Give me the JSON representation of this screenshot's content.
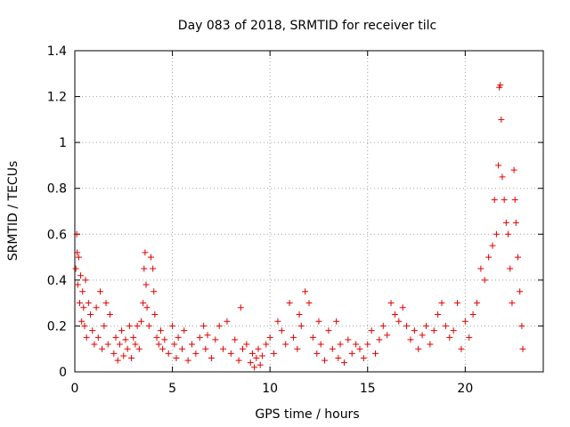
{
  "chart_data": {
    "type": "scatter",
    "title": "Day 083 of 2018, SRMTID for receiver tilc",
    "xlabel": "GPS time / hours",
    "ylabel": "SRMTID / TECUs",
    "xlim": [
      0,
      24
    ],
    "ylim": [
      0,
      1.4
    ],
    "x_ticks": [
      0,
      5,
      10,
      15,
      20
    ],
    "x_tick_labels": [
      "0",
      "5",
      "10",
      "15",
      "20"
    ],
    "y_ticks": [
      0,
      0.2,
      0.4,
      0.6,
      0.8,
      1.0,
      1.2,
      1.4
    ],
    "y_tick_labels": [
      "0",
      "0.2",
      "0.4",
      "0.6",
      "0.8",
      "1",
      "1.2",
      "1.4"
    ],
    "grid": true,
    "marker": "+",
    "series": [
      {
        "name": "SRMTID tilc",
        "color": "#e00000",
        "points": [
          [
            0.05,
            0.45
          ],
          [
            0.1,
            0.6
          ],
          [
            0.12,
            0.52
          ],
          [
            0.15,
            0.38
          ],
          [
            0.2,
            0.5
          ],
          [
            0.25,
            0.3
          ],
          [
            0.3,
            0.42
          ],
          [
            0.35,
            0.22
          ],
          [
            0.4,
            0.35
          ],
          [
            0.45,
            0.28
          ],
          [
            0.5,
            0.2
          ],
          [
            0.55,
            0.4
          ],
          [
            0.6,
            0.15
          ],
          [
            0.7,
            0.3
          ],
          [
            0.8,
            0.25
          ],
          [
            0.9,
            0.18
          ],
          [
            1.0,
            0.12
          ],
          [
            1.1,
            0.28
          ],
          [
            1.2,
            0.15
          ],
          [
            1.3,
            0.35
          ],
          [
            1.4,
            0.1
          ],
          [
            1.5,
            0.2
          ],
          [
            1.6,
            0.3
          ],
          [
            1.7,
            0.12
          ],
          [
            1.8,
            0.25
          ],
          [
            2.0,
            0.08
          ],
          [
            2.1,
            0.15
          ],
          [
            2.2,
            0.05
          ],
          [
            2.3,
            0.12
          ],
          [
            2.4,
            0.18
          ],
          [
            2.5,
            0.07
          ],
          [
            2.6,
            0.14
          ],
          [
            2.7,
            0.1
          ],
          [
            2.8,
            0.2
          ],
          [
            2.9,
            0.06
          ],
          [
            3.0,
            0.15
          ],
          [
            3.1,
            0.12
          ],
          [
            3.2,
            0.2
          ],
          [
            3.3,
            0.1
          ],
          [
            3.4,
            0.22
          ],
          [
            3.5,
            0.3
          ],
          [
            3.55,
            0.45
          ],
          [
            3.6,
            0.52
          ],
          [
            3.65,
            0.38
          ],
          [
            3.7,
            0.28
          ],
          [
            3.8,
            0.2
          ],
          [
            3.9,
            0.5
          ],
          [
            4.0,
            0.45
          ],
          [
            4.05,
            0.35
          ],
          [
            4.1,
            0.25
          ],
          [
            4.2,
            0.15
          ],
          [
            4.3,
            0.12
          ],
          [
            4.4,
            0.18
          ],
          [
            4.5,
            0.1
          ],
          [
            4.6,
            0.14
          ],
          [
            4.8,
            0.08
          ],
          [
            5.0,
            0.2
          ],
          [
            5.1,
            0.12
          ],
          [
            5.2,
            0.06
          ],
          [
            5.3,
            0.15
          ],
          [
            5.5,
            0.1
          ],
          [
            5.6,
            0.18
          ],
          [
            5.8,
            0.05
          ],
          [
            6.0,
            0.12
          ],
          [
            6.2,
            0.08
          ],
          [
            6.4,
            0.15
          ],
          [
            6.6,
            0.2
          ],
          [
            6.7,
            0.1
          ],
          [
            6.8,
            0.16
          ],
          [
            7.0,
            0.06
          ],
          [
            7.2,
            0.14
          ],
          [
            7.4,
            0.2
          ],
          [
            7.6,
            0.1
          ],
          [
            7.8,
            0.22
          ],
          [
            8.0,
            0.08
          ],
          [
            8.2,
            0.14
          ],
          [
            8.4,
            0.05
          ],
          [
            8.5,
            0.28
          ],
          [
            8.6,
            0.1
          ],
          [
            8.8,
            0.12
          ],
          [
            9.0,
            0.04
          ],
          [
            9.1,
            0.08
          ],
          [
            9.2,
            0.02
          ],
          [
            9.3,
            0.06
          ],
          [
            9.4,
            0.1
          ],
          [
            9.5,
            0.03
          ],
          [
            9.6,
            0.07
          ],
          [
            9.8,
            0.12
          ],
          [
            10.0,
            0.15
          ],
          [
            10.2,
            0.08
          ],
          [
            10.4,
            0.22
          ],
          [
            10.6,
            0.18
          ],
          [
            10.8,
            0.12
          ],
          [
            11.0,
            0.3
          ],
          [
            11.2,
            0.15
          ],
          [
            11.4,
            0.1
          ],
          [
            11.5,
            0.25
          ],
          [
            11.6,
            0.2
          ],
          [
            11.8,
            0.35
          ],
          [
            12.0,
            0.3
          ],
          [
            12.2,
            0.15
          ],
          [
            12.4,
            0.08
          ],
          [
            12.5,
            0.22
          ],
          [
            12.6,
            0.12
          ],
          [
            12.8,
            0.05
          ],
          [
            13.0,
            0.18
          ],
          [
            13.2,
            0.1
          ],
          [
            13.4,
            0.22
          ],
          [
            13.5,
            0.06
          ],
          [
            13.6,
            0.12
          ],
          [
            13.8,
            0.04
          ],
          [
            14.0,
            0.14
          ],
          [
            14.2,
            0.08
          ],
          [
            14.4,
            0.12
          ],
          [
            14.6,
            0.1
          ],
          [
            14.8,
            0.06
          ],
          [
            15.0,
            0.12
          ],
          [
            15.2,
            0.18
          ],
          [
            15.4,
            0.08
          ],
          [
            15.6,
            0.14
          ],
          [
            15.8,
            0.2
          ],
          [
            16.0,
            0.16
          ],
          [
            16.2,
            0.3
          ],
          [
            16.4,
            0.25
          ],
          [
            16.6,
            0.22
          ],
          [
            16.8,
            0.28
          ],
          [
            17.0,
            0.2
          ],
          [
            17.2,
            0.14
          ],
          [
            17.4,
            0.18
          ],
          [
            17.6,
            0.1
          ],
          [
            17.8,
            0.16
          ],
          [
            18.0,
            0.2
          ],
          [
            18.2,
            0.12
          ],
          [
            18.4,
            0.18
          ],
          [
            18.6,
            0.25
          ],
          [
            18.8,
            0.3
          ],
          [
            19.0,
            0.2
          ],
          [
            19.2,
            0.15
          ],
          [
            19.4,
            0.18
          ],
          [
            19.6,
            0.3
          ],
          [
            19.8,
            0.1
          ],
          [
            20.0,
            0.22
          ],
          [
            20.2,
            0.15
          ],
          [
            20.4,
            0.25
          ],
          [
            20.6,
            0.3
          ],
          [
            20.8,
            0.45
          ],
          [
            21.0,
            0.4
          ],
          [
            21.2,
            0.5
          ],
          [
            21.4,
            0.55
          ],
          [
            21.5,
            0.75
          ],
          [
            21.6,
            0.6
          ],
          [
            21.7,
            0.9
          ],
          [
            21.75,
            1.24
          ],
          [
            21.8,
            1.25
          ],
          [
            21.85,
            1.1
          ],
          [
            21.9,
            0.85
          ],
          [
            22.0,
            0.75
          ],
          [
            22.1,
            0.65
          ],
          [
            22.2,
            0.6
          ],
          [
            22.3,
            0.45
          ],
          [
            22.4,
            0.3
          ],
          [
            22.5,
            0.88
          ],
          [
            22.55,
            0.75
          ],
          [
            22.6,
            0.65
          ],
          [
            22.7,
            0.5
          ],
          [
            22.8,
            0.35
          ],
          [
            22.9,
            0.2
          ],
          [
            22.95,
            0.1
          ]
        ]
      }
    ]
  }
}
